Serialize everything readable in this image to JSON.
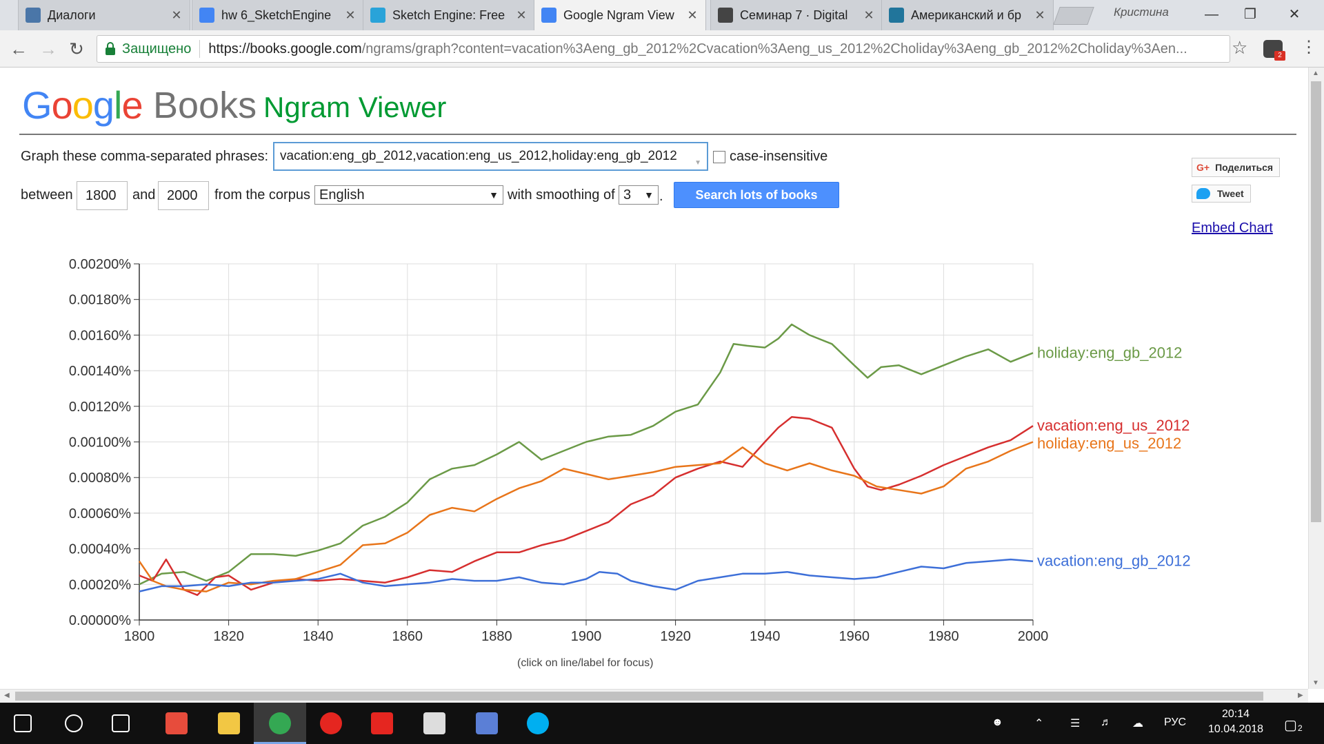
{
  "browser": {
    "tabs": [
      {
        "title": "Диалоги",
        "icon": "chat-icon",
        "color": "#4a76a8",
        "active": false
      },
      {
        "title": "hw 6_SketchEngine",
        "icon": "doc-icon",
        "color": "#4285f4",
        "active": false
      },
      {
        "title": "Sketch Engine: Free",
        "icon": "sketch-icon",
        "color": "#29a3d9",
        "active": false
      },
      {
        "title": "Google Ngram View",
        "icon": "google-icon",
        "color": "#4285f4",
        "active": true
      },
      {
        "title": "Семинар 7 · Digital",
        "icon": "book-icon",
        "color": "#444444",
        "active": false
      },
      {
        "title": "Американский и бр",
        "icon": "wordpress-icon",
        "color": "#21759b",
        "active": false
      }
    ],
    "profile": "Кристина",
    "secure_label": "Защищено",
    "url_host": "https://books.google.com",
    "url_rest": "/ngrams/graph?content=vacation%3Aeng_gb_2012%2Cvacation%3Aeng_us_2012%2Choliday%3Aeng_gb_2012%2Choliday%3Aen...",
    "ext_badge": "2"
  },
  "page": {
    "logo_google": "Google",
    "logo_books": "Books",
    "title": "Ngram Viewer",
    "graph_label": "Graph these comma-separated phrases:",
    "query": "vacation:eng_gb_2012,vacation:eng_us_2012,holiday:eng_gb_2012",
    "case_label": "case-insensitive",
    "between_label": "between",
    "start_year": "1800",
    "and_label": "and",
    "end_year": "2000",
    "corpus_label": "from the corpus",
    "corpus": "English",
    "smoothing_label": "with smoothing of",
    "smoothing": "3",
    "search_button": "Search lots of books",
    "share_label": "Поделиться",
    "tweet_label": "Tweet",
    "embed_label": "Embed Chart",
    "footnote": "(click on line/label for focus)"
  },
  "chart_data": {
    "type": "line",
    "x_range": [
      1800,
      2000
    ],
    "y_range": [
      0,
      0.002
    ],
    "grid": true,
    "y_ticks": [
      "0.00000%",
      "0.00020%",
      "0.00040%",
      "0.00060%",
      "0.00080%",
      "0.00100%",
      "0.00120%",
      "0.00140%",
      "0.00160%",
      "0.00180%",
      "0.00200%"
    ],
    "x_ticks": [
      "1800",
      "1820",
      "1840",
      "1860",
      "1880",
      "1900",
      "1920",
      "1940",
      "1960",
      "1980",
      "2000"
    ],
    "x_tick_values": [
      1800,
      1820,
      1840,
      1860,
      1880,
      1900,
      1920,
      1940,
      1960,
      1980,
      2000
    ],
    "series": [
      {
        "name": "holiday:eng_gb_2012",
        "color": "#6b9a47",
        "x": [
          1800,
          1805,
          1810,
          1815,
          1820,
          1825,
          1830,
          1835,
          1840,
          1845,
          1850,
          1855,
          1860,
          1865,
          1870,
          1875,
          1880,
          1885,
          1890,
          1895,
          1900,
          1905,
          1910,
          1915,
          1920,
          1925,
          1930,
          1933,
          1936,
          1940,
          1943,
          1946,
          1950,
          1955,
          1960,
          1963,
          1966,
          1970,
          1975,
          1980,
          1985,
          1990,
          1995,
          2000
        ],
        "y": [
          0.0002,
          0.00026,
          0.00027,
          0.00022,
          0.00027,
          0.00037,
          0.00037,
          0.00036,
          0.00039,
          0.00043,
          0.00053,
          0.00058,
          0.00066,
          0.00079,
          0.00085,
          0.00087,
          0.00093,
          0.001,
          0.0009,
          0.00095,
          0.001,
          0.00103,
          0.00104,
          0.00109,
          0.00117,
          0.00121,
          0.00139,
          0.00155,
          0.00154,
          0.00153,
          0.00158,
          0.00166,
          0.0016,
          0.00155,
          0.00143,
          0.00136,
          0.00142,
          0.00143,
          0.00138,
          0.00143,
          0.00148,
          0.00152,
          0.00145,
          0.0015
        ]
      },
      {
        "name": "vacation:eng_us_2012",
        "color": "#d62f2f",
        "x": [
          1800,
          1803,
          1806,
          1810,
          1813,
          1817,
          1820,
          1825,
          1830,
          1835,
          1840,
          1845,
          1850,
          1855,
          1860,
          1865,
          1870,
          1875,
          1880,
          1885,
          1890,
          1895,
          1900,
          1905,
          1910,
          1915,
          1920,
          1925,
          1930,
          1935,
          1940,
          1943,
          1946,
          1950,
          1955,
          1960,
          1963,
          1966,
          1970,
          1975,
          1980,
          1985,
          1990,
          1995,
          2000
        ],
        "y": [
          0.00025,
          0.00022,
          0.00034,
          0.00017,
          0.00014,
          0.00024,
          0.00025,
          0.00017,
          0.00021,
          0.00023,
          0.00022,
          0.00023,
          0.00022,
          0.00021,
          0.00024,
          0.00028,
          0.00027,
          0.00033,
          0.00038,
          0.00038,
          0.00042,
          0.00045,
          0.0005,
          0.00055,
          0.00065,
          0.0007,
          0.0008,
          0.00085,
          0.00089,
          0.00086,
          0.001,
          0.00108,
          0.00114,
          0.00113,
          0.00108,
          0.00085,
          0.00075,
          0.00073,
          0.00076,
          0.00081,
          0.00087,
          0.00092,
          0.00097,
          0.00101,
          0.00109
        ]
      },
      {
        "name": "holiday:eng_us_2012",
        "color": "#e8751a",
        "x": [
          1800,
          1803,
          1806,
          1810,
          1815,
          1820,
          1825,
          1830,
          1835,
          1840,
          1845,
          1850,
          1855,
          1860,
          1865,
          1870,
          1875,
          1880,
          1885,
          1890,
          1895,
          1900,
          1905,
          1910,
          1915,
          1920,
          1925,
          1930,
          1935,
          1940,
          1945,
          1950,
          1955,
          1960,
          1965,
          1970,
          1975,
          1980,
          1985,
          1990,
          1995,
          2000
        ],
        "y": [
          0.00033,
          0.00022,
          0.00019,
          0.00017,
          0.00016,
          0.00021,
          0.0002,
          0.00022,
          0.00023,
          0.00027,
          0.00031,
          0.00042,
          0.00043,
          0.00049,
          0.00059,
          0.00063,
          0.00061,
          0.00068,
          0.00074,
          0.00078,
          0.00085,
          0.00082,
          0.00079,
          0.00081,
          0.00083,
          0.00086,
          0.00087,
          0.00088,
          0.00097,
          0.00088,
          0.00084,
          0.00088,
          0.00084,
          0.00081,
          0.00075,
          0.00073,
          0.00071,
          0.00075,
          0.00085,
          0.00089,
          0.00095,
          0.001
        ]
      },
      {
        "name": "vacation:eng_gb_2012",
        "color": "#3d6fd8",
        "x": [
          1800,
          1805,
          1810,
          1815,
          1820,
          1825,
          1830,
          1835,
          1840,
          1845,
          1850,
          1855,
          1860,
          1865,
          1870,
          1875,
          1880,
          1885,
          1890,
          1895,
          1900,
          1903,
          1907,
          1910,
          1915,
          1920,
          1925,
          1930,
          1935,
          1940,
          1945,
          1950,
          1955,
          1960,
          1965,
          1970,
          1975,
          1980,
          1985,
          1990,
          1995,
          2000
        ],
        "y": [
          0.00016,
          0.00019,
          0.00019,
          0.0002,
          0.00019,
          0.00021,
          0.00021,
          0.00022,
          0.00023,
          0.00026,
          0.00021,
          0.00019,
          0.0002,
          0.00021,
          0.00023,
          0.00022,
          0.00022,
          0.00024,
          0.00021,
          0.0002,
          0.00023,
          0.00027,
          0.00026,
          0.00022,
          0.00019,
          0.00017,
          0.00022,
          0.00024,
          0.00026,
          0.00026,
          0.00027,
          0.00025,
          0.00024,
          0.00023,
          0.00024,
          0.00027,
          0.0003,
          0.00029,
          0.00032,
          0.00033,
          0.00034,
          0.00033
        ]
      }
    ]
  },
  "taskbar": {
    "apps": [
      {
        "icon": "windows-start-icon",
        "color": "#ffffff"
      },
      {
        "icon": "search-icon",
        "color": "#ffffff"
      },
      {
        "icon": "task-view-icon",
        "color": "#ffffff"
      },
      {
        "icon": "store-icon",
        "color": "#e74c3c"
      },
      {
        "icon": "file-explorer-icon",
        "color": "#f2c744"
      },
      {
        "icon": "chrome-icon",
        "color": "#34a853"
      },
      {
        "icon": "yandex-browser-icon",
        "color": "#e52620"
      },
      {
        "icon": "yandex-icon",
        "color": "#e52620"
      },
      {
        "icon": "mail-icon",
        "color": "#dddddd"
      },
      {
        "icon": "books-icon",
        "color": "#5b7fd6"
      },
      {
        "icon": "skype-icon",
        "color": "#00aff0"
      }
    ],
    "lang": "РУС",
    "time": "20:14",
    "date": "10.04.2018",
    "notif_count": "2"
  }
}
